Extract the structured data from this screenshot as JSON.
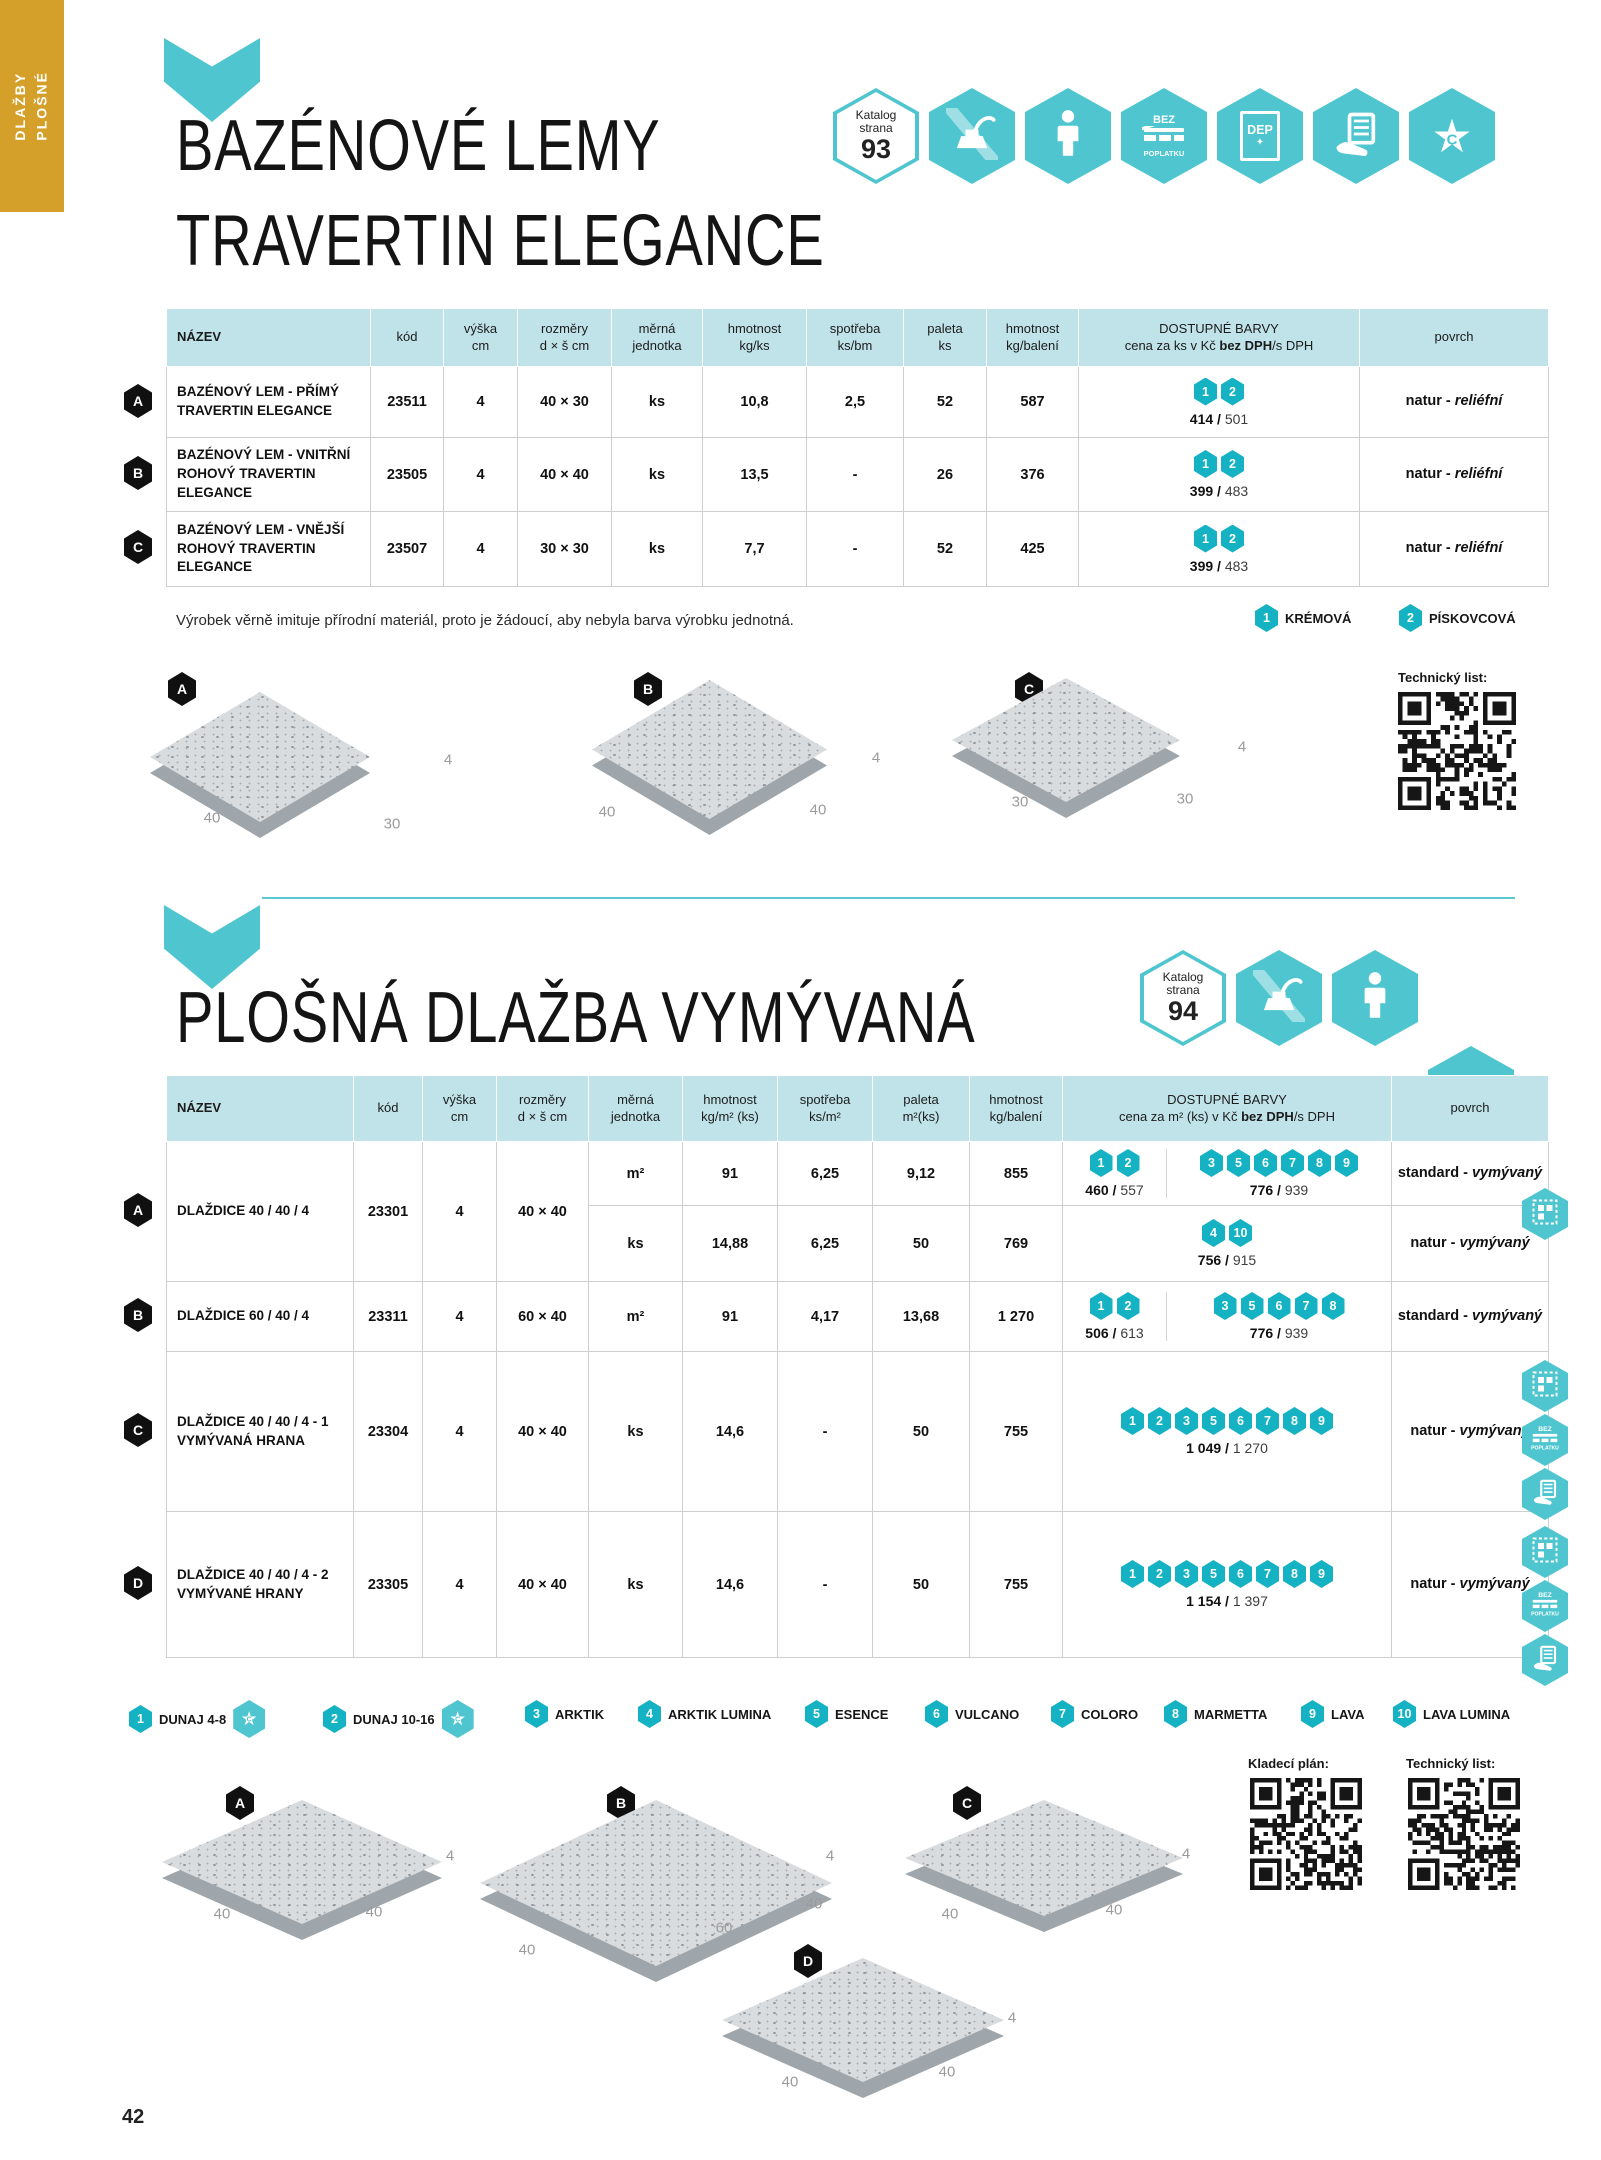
{
  "side_tab": {
    "text": "DLAŽBY\nPLOŠNÉ"
  },
  "page_number": "42",
  "icon_labels": {
    "bez": "BEZ",
    "poplatku": "POPLATKU",
    "dep": "DEP",
    "dep_plus": "✦",
    "star_letter": "C"
  },
  "colors": {
    "accent_teal": "#4ec5cf",
    "badge_teal": "#14b2c2",
    "gold": "#d4a02a",
    "table_header": "#bfe3e8"
  },
  "section1": {
    "title_line1": "BAZÉNOVÉ LEMY",
    "title_line2": "TRAVERTIN ELEGANCE",
    "katalog_badge": {
      "small1": "Katalog",
      "small2": "strana",
      "page": "93"
    },
    "icons": [
      "katalog-page",
      "no-compactor",
      "person",
      "bez-poplatku-pallet",
      "dep-plus",
      "handover-leaflet",
      "star-c"
    ],
    "table": {
      "headers": [
        {
          "l1": "NÁZEV"
        },
        {
          "l1": "kód"
        },
        {
          "l1": "výška",
          "l2": "cm"
        },
        {
          "l1": "rozměry",
          "l2": "d × š cm"
        },
        {
          "l1": "měrná",
          "l2": "jednotka"
        },
        {
          "l1": "hmotnost",
          "l2": "kg/ks"
        },
        {
          "l1": "spotřeba",
          "l2": "ks/bm"
        },
        {
          "l1": "paleta",
          "l2": "ks"
        },
        {
          "l1": "hmotnost",
          "l2": "kg/balení"
        },
        {
          "l1": "DOSTUPNÉ BARVY",
          "l2pre": "cena za ks v Kč ",
          "l2bold": "bez DPH",
          "l2post": "/s DPH"
        },
        {
          "l1": "povrch"
        }
      ],
      "rows": [
        {
          "letter": "A",
          "name": "BAZÉNOVÝ LEM - PŘÍMÝ TRAVERTIN ELEGANCE",
          "kod": "23511",
          "vyska": "4",
          "rozmery": "40 × 30",
          "mj": "ks",
          "hmotnost": "10,8",
          "spotreba": "2,5",
          "paleta": "52",
          "baleni": "587",
          "colors": [
            "1",
            "2"
          ],
          "cena_bez": "414",
          "cena_s": "501",
          "povrch_pre": "natur - ",
          "povrch_it": "reliéfní"
        },
        {
          "letter": "B",
          "name": "BAZÉNOVÝ LEM - VNITŘNÍ ROHOVÝ TRAVERTIN ELEGANCE",
          "kod": "23505",
          "vyska": "4",
          "rozmery": "40 × 40",
          "mj": "ks",
          "hmotnost": "13,5",
          "spotreba": "-",
          "paleta": "26",
          "baleni": "376",
          "colors": [
            "1",
            "2"
          ],
          "cena_bez": "399",
          "cena_s": "483",
          "povrch_pre": "natur - ",
          "povrch_it": "reliéfní"
        },
        {
          "letter": "C",
          "name": "BAZÉNOVÝ LEM - VNĚJŠÍ ROHOVÝ TRAVERTIN ELEGANCE",
          "kod": "23507",
          "vyska": "4",
          "rozmery": "30 × 30",
          "mj": "ks",
          "hmotnost": "7,7",
          "spotreba": "-",
          "paleta": "52",
          "baleni": "425",
          "colors": [
            "1",
            "2"
          ],
          "cena_bez": "399",
          "cena_s": "483",
          "povrch_pre": "natur - ",
          "povrch_it": "reliéfní"
        }
      ]
    },
    "note": "Výrobek věrně imituje přírodní materiál, proto je žádoucí, aby nebyla barva výrobku jednotná.",
    "legend": [
      {
        "num": "1",
        "name": "KRÉMOVÁ"
      },
      {
        "num": "2",
        "name": "PÍSKOVCOVÁ"
      }
    ],
    "tech_list_label": "Technický list:",
    "diagrams": [
      {
        "letter": "A",
        "dl": "40",
        "db": "30",
        "dt": "4"
      },
      {
        "letter": "B",
        "dl": "40",
        "db": "40",
        "dt": "4"
      },
      {
        "letter": "C",
        "dl": "30",
        "db": "30",
        "dt": "4"
      }
    ]
  },
  "section2": {
    "title": "PLOŠNÁ DLAŽBA VYMÝVANÁ",
    "katalog_badge": {
      "small1": "Katalog",
      "small2": "strana",
      "page": "94"
    },
    "icons": [
      "katalog-page",
      "no-compactor",
      "person",
      "star-c"
    ],
    "side_icons": [
      "laying-pattern",
      "bez-poplatku-pallet",
      "handover-leaflet"
    ],
    "table": {
      "headers": [
        {
          "l1": "NÁZEV"
        },
        {
          "l1": "kód"
        },
        {
          "l1": "výška",
          "l2": "cm"
        },
        {
          "l1": "rozměry",
          "l2": "d × š cm"
        },
        {
          "l1": "měrná",
          "l2": "jednotka"
        },
        {
          "l1": "hmotnost",
          "l2": "kg/m² (ks)"
        },
        {
          "l1": "spotřeba",
          "l2": "ks/m²"
        },
        {
          "l1": "paleta",
          "l2": "m²(ks)"
        },
        {
          "l1": "hmotnost",
          "l2": "kg/balení"
        },
        {
          "l1": "DOSTUPNÉ BARVY",
          "l2pre": "cena za m² (ks) v Kč ",
          "l2bold": "bez DPH",
          "l2post": "/s DPH"
        },
        {
          "l1": "povrch"
        }
      ],
      "rowA": {
        "letter": "A",
        "name": "DLAŽDICE 40 / 40 / 4",
        "kod": "23301",
        "vyska": "4",
        "rozmery": "40 × 40",
        "sub1": {
          "mj": "m²",
          "hmotnost": "91",
          "spotreba": "6,25",
          "paleta": "9,12",
          "baleni": "855",
          "g1": {
            "colors": [
              "1",
              "2"
            ],
            "bez": "460",
            "s": "557"
          },
          "g2": {
            "colors": [
              "3",
              "5",
              "6",
              "7",
              "8",
              "9"
            ],
            "bez": "776",
            "s": "939"
          },
          "povrch_pre": "standard - ",
          "povrch_it": "vymývaný"
        },
        "sub2": {
          "mj": "ks",
          "hmotnost": "14,88",
          "spotreba": "6,25",
          "paleta": "50",
          "baleni": "769",
          "g": {
            "colors": [
              "4",
              "10"
            ],
            "bez": "756",
            "s": "915"
          },
          "povrch_pre": "natur - ",
          "povrch_it": "vymývaný"
        }
      },
      "rowB": {
        "letter": "B",
        "name": "DLAŽDICE 60 / 40 / 4",
        "kod": "23311",
        "vyska": "4",
        "rozmery": "60 × 40",
        "mj": "m²",
        "hmotnost": "91",
        "spotreba": "4,17",
        "paleta": "13,68",
        "baleni": "1 270",
        "g1": {
          "colors": [
            "1",
            "2"
          ],
          "bez": "506",
          "s": "613"
        },
        "g2": {
          "colors": [
            "3",
            "5",
            "6",
            "7",
            "8"
          ],
          "bez": "776",
          "s": "939"
        },
        "povrch_pre": "standard - ",
        "povrch_it": "vymývaný"
      },
      "rowC": {
        "letter": "C",
        "name": "DLAŽDICE 40 / 40 / 4 - 1 VYMÝVANÁ HRANA",
        "kod": "23304",
        "vyska": "4",
        "rozmery": "40 × 40",
        "mj": "ks",
        "hmotnost": "14,6",
        "spotreba": "-",
        "paleta": "50",
        "baleni": "755",
        "g": {
          "colors": [
            "1",
            "2",
            "3",
            "5",
            "6",
            "7",
            "8",
            "9"
          ],
          "bez": "1 049",
          "s": "1 270"
        },
        "povrch_pre": "natur - ",
        "povrch_it": "vymývaný"
      },
      "rowD": {
        "letter": "D",
        "name": "DLAŽDICE 40 / 40 / 4 - 2 VYMÝVANÉ HRANY",
        "kod": "23305",
        "vyska": "4",
        "rozmery": "40 × 40",
        "mj": "ks",
        "hmotnost": "14,6",
        "spotreba": "-",
        "paleta": "50",
        "baleni": "755",
        "g": {
          "colors": [
            "1",
            "2",
            "3",
            "5",
            "6",
            "7",
            "8",
            "9"
          ],
          "bez": "1 154",
          "s": "1 397"
        },
        "povrch_pre": "natur - ",
        "povrch_it": "vymývaný"
      }
    },
    "legend": [
      {
        "num": "1",
        "name": "DUNAJ 4-8",
        "star": true
      },
      {
        "num": "2",
        "name": "DUNAJ 10-16",
        "star": true
      },
      {
        "num": "3",
        "name": "ARKTIK"
      },
      {
        "num": "4",
        "name": "ARKTIK LUMINA"
      },
      {
        "num": "5",
        "name": "ESENCE"
      },
      {
        "num": "6",
        "name": "VULCANO"
      },
      {
        "num": "7",
        "name": "COLORO"
      },
      {
        "num": "8",
        "name": "MARMETTA"
      },
      {
        "num": "9",
        "name": "LAVA"
      },
      {
        "num": "10",
        "name": "LAVA LUMINA"
      }
    ],
    "kladeci_label": "Kladecí plán:",
    "tech_list_label": "Technický list:",
    "diagrams": [
      {
        "letter": "A",
        "dl": "40",
        "db": "40",
        "dt": "4"
      },
      {
        "letter": "B",
        "dl": "40",
        "dm": "60",
        "db": "40",
        "dt": "4"
      },
      {
        "letter": "C",
        "dl": "40",
        "db": "40",
        "dt": "4"
      },
      {
        "letter": "D",
        "dl": "40",
        "db": "40",
        "dt": "4"
      }
    ]
  }
}
